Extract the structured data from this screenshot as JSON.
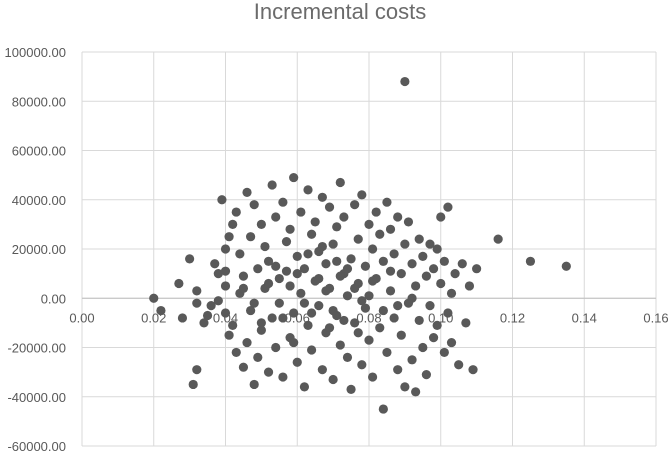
{
  "chart_data": {
    "type": "scatter",
    "title": "Incremental costs",
    "xlabel": "",
    "ylabel": "",
    "xlim": [
      0,
      0.16
    ],
    "ylim": [
      -60000,
      100000
    ],
    "x_ticks": [
      0.0,
      0.02,
      0.04,
      0.06,
      0.08,
      0.1,
      0.12,
      0.14,
      0.16
    ],
    "x_tick_labels": [
      "0.00",
      "0.02",
      "0.04",
      "0.06",
      "0.08",
      "0.10",
      "0.12",
      "0.14",
      "0.16"
    ],
    "y_ticks": [
      100000,
      80000,
      60000,
      40000,
      20000,
      0,
      -20000,
      -40000,
      -60000
    ],
    "y_tick_labels": [
      "100000.00",
      "80000.00",
      "60000.00",
      "40000.00",
      "20000.00",
      "0.00",
      "-20000.00",
      "-40000.00",
      "-60000.00"
    ],
    "grid": "vertical and horizontal",
    "point_color": "#595959",
    "series": [
      {
        "values": [
          [
            0.02,
            0
          ],
          [
            0.022,
            -5000
          ],
          [
            0.027,
            6000
          ],
          [
            0.028,
            -8000
          ],
          [
            0.03,
            16000
          ],
          [
            0.031,
            -35000
          ],
          [
            0.032,
            -29000
          ],
          [
            0.032,
            -2000
          ],
          [
            0.032,
            3000
          ],
          [
            0.034,
            -10000
          ],
          [
            0.035,
            -7000
          ],
          [
            0.036,
            -3000
          ],
          [
            0.037,
            14000
          ],
          [
            0.038,
            10000
          ],
          [
            0.038,
            -1000
          ],
          [
            0.039,
            40000
          ],
          [
            0.04,
            20000
          ],
          [
            0.04,
            11000
          ],
          [
            0.04,
            5000
          ],
          [
            0.04,
            -6000
          ],
          [
            0.041,
            25000
          ],
          [
            0.041,
            -15000
          ],
          [
            0.042,
            30000
          ],
          [
            0.042,
            -11000
          ],
          [
            0.043,
            35000
          ],
          [
            0.043,
            -22000
          ],
          [
            0.044,
            18000
          ],
          [
            0.044,
            2000
          ],
          [
            0.045,
            -28000
          ],
          [
            0.045,
            9000
          ],
          [
            0.046,
            43000
          ],
          [
            0.046,
            -18000
          ],
          [
            0.047,
            25000
          ],
          [
            0.047,
            -5000
          ],
          [
            0.048,
            -35000
          ],
          [
            0.048,
            38000
          ],
          [
            0.049,
            12000
          ],
          [
            0.049,
            -24000
          ],
          [
            0.05,
            30000
          ],
          [
            0.05,
            -13000
          ],
          [
            0.051,
            21000
          ],
          [
            0.051,
            4000
          ],
          [
            0.052,
            -30000
          ],
          [
            0.052,
            15000
          ],
          [
            0.053,
            46000
          ],
          [
            0.053,
            -8000
          ],
          [
            0.054,
            33000
          ],
          [
            0.054,
            -20000
          ],
          [
            0.055,
            8000
          ],
          [
            0.055,
            -2000
          ],
          [
            0.056,
            39000
          ],
          [
            0.056,
            -32000
          ],
          [
            0.057,
            23000
          ],
          [
            0.057,
            11000
          ],
          [
            0.058,
            -16000
          ],
          [
            0.058,
            28000
          ],
          [
            0.059,
            49000
          ],
          [
            0.059,
            -6000
          ],
          [
            0.06,
            17000
          ],
          [
            0.06,
            -26000
          ],
          [
            0.061,
            35000
          ],
          [
            0.061,
            2000
          ],
          [
            0.062,
            -36000
          ],
          [
            0.062,
            12000
          ],
          [
            0.063,
            44000
          ],
          [
            0.063,
            -11000
          ],
          [
            0.064,
            26000
          ],
          [
            0.064,
            -21000
          ],
          [
            0.065,
            7000
          ],
          [
            0.065,
            31000
          ],
          [
            0.066,
            -3000
          ],
          [
            0.066,
            19000
          ],
          [
            0.067,
            -29000
          ],
          [
            0.067,
            41000
          ],
          [
            0.068,
            14000
          ],
          [
            0.068,
            -14000
          ],
          [
            0.069,
            37000
          ],
          [
            0.069,
            4000
          ],
          [
            0.07,
            -33000
          ],
          [
            0.07,
            22000
          ],
          [
            0.071,
            29000
          ],
          [
            0.071,
            -7000
          ],
          [
            0.072,
            47000
          ],
          [
            0.072,
            -19000
          ],
          [
            0.073,
            10000
          ],
          [
            0.073,
            33000
          ],
          [
            0.074,
            -24000
          ],
          [
            0.074,
            1000
          ],
          [
            0.075,
            16000
          ],
          [
            0.075,
            -37000
          ],
          [
            0.076,
            38000
          ],
          [
            0.076,
            -10000
          ],
          [
            0.077,
            24000
          ],
          [
            0.077,
            6000
          ],
          [
            0.078,
            -27000
          ],
          [
            0.078,
            42000
          ],
          [
            0.079,
            13000
          ],
          [
            0.079,
            -4000
          ],
          [
            0.08,
            30000
          ],
          [
            0.08,
            -17000
          ],
          [
            0.081,
            20000
          ],
          [
            0.081,
            -32000
          ],
          [
            0.082,
            35000
          ],
          [
            0.082,
            8000
          ],
          [
            0.083,
            -12000
          ],
          [
            0.083,
            26000
          ],
          [
            0.084,
            -45000
          ],
          [
            0.084,
            15000
          ],
          [
            0.085,
            39000
          ],
          [
            0.085,
            -22000
          ],
          [
            0.086,
            3000
          ],
          [
            0.086,
            28000
          ],
          [
            0.087,
            -8000
          ],
          [
            0.087,
            18000
          ],
          [
            0.088,
            -29000
          ],
          [
            0.088,
            33000
          ],
          [
            0.089,
            10000
          ],
          [
            0.089,
            -15000
          ],
          [
            0.09,
            88000
          ],
          [
            0.09,
            22000
          ],
          [
            0.09,
            -36000
          ],
          [
            0.091,
            -2000
          ],
          [
            0.091,
            31000
          ],
          [
            0.092,
            -25000
          ],
          [
            0.092,
            14000
          ],
          [
            0.093,
            5000
          ],
          [
            0.093,
            -38000
          ],
          [
            0.094,
            24000
          ],
          [
            0.094,
            -9000
          ],
          [
            0.095,
            17000
          ],
          [
            0.095,
            -20000
          ],
          [
            0.096,
            9000
          ],
          [
            0.096,
            -31000
          ],
          [
            0.097,
            22000
          ],
          [
            0.097,
            -3000
          ],
          [
            0.098,
            12000
          ],
          [
            0.098,
            -16000
          ],
          [
            0.099,
            20000
          ],
          [
            0.099,
            -11000
          ],
          [
            0.1,
            33000
          ],
          [
            0.1,
            6000
          ],
          [
            0.101,
            -22000
          ],
          [
            0.101,
            15000
          ],
          [
            0.102,
            37000
          ],
          [
            0.102,
            -6000
          ],
          [
            0.103,
            2000
          ],
          [
            0.103,
            -18000
          ],
          [
            0.104,
            10000
          ],
          [
            0.105,
            -27000
          ],
          [
            0.106,
            14000
          ],
          [
            0.107,
            -10000
          ],
          [
            0.108,
            5000
          ],
          [
            0.109,
            -29000
          ],
          [
            0.11,
            12000
          ],
          [
            0.116,
            24000
          ],
          [
            0.125,
            15000
          ],
          [
            0.135,
            13000
          ],
          [
            0.058,
            5000
          ],
          [
            0.062,
            -2000
          ],
          [
            0.066,
            8000
          ],
          [
            0.07,
            -5000
          ],
          [
            0.074,
            12000
          ],
          [
            0.078,
            -1000
          ],
          [
            0.068,
            3000
          ],
          [
            0.072,
            9000
          ],
          [
            0.064,
            -6000
          ],
          [
            0.076,
            4000
          ],
          [
            0.06,
            10000
          ],
          [
            0.08,
            1000
          ],
          [
            0.084,
            -5000
          ],
          [
            0.056,
            -8000
          ],
          [
            0.052,
            6000
          ],
          [
            0.086,
            11000
          ],
          [
            0.048,
            -2000
          ],
          [
            0.069,
            -12000
          ],
          [
            0.071,
            15000
          ],
          [
            0.073,
            -9000
          ],
          [
            0.063,
            18000
          ],
          [
            0.077,
            -14000
          ],
          [
            0.067,
            21000
          ],
          [
            0.059,
            -18000
          ],
          [
            0.081,
            7000
          ],
          [
            0.054,
            13000
          ],
          [
            0.088,
            -3000
          ],
          [
            0.045,
            4000
          ],
          [
            0.092,
            0
          ],
          [
            0.05,
            -10000
          ]
        ]
      }
    ]
  }
}
